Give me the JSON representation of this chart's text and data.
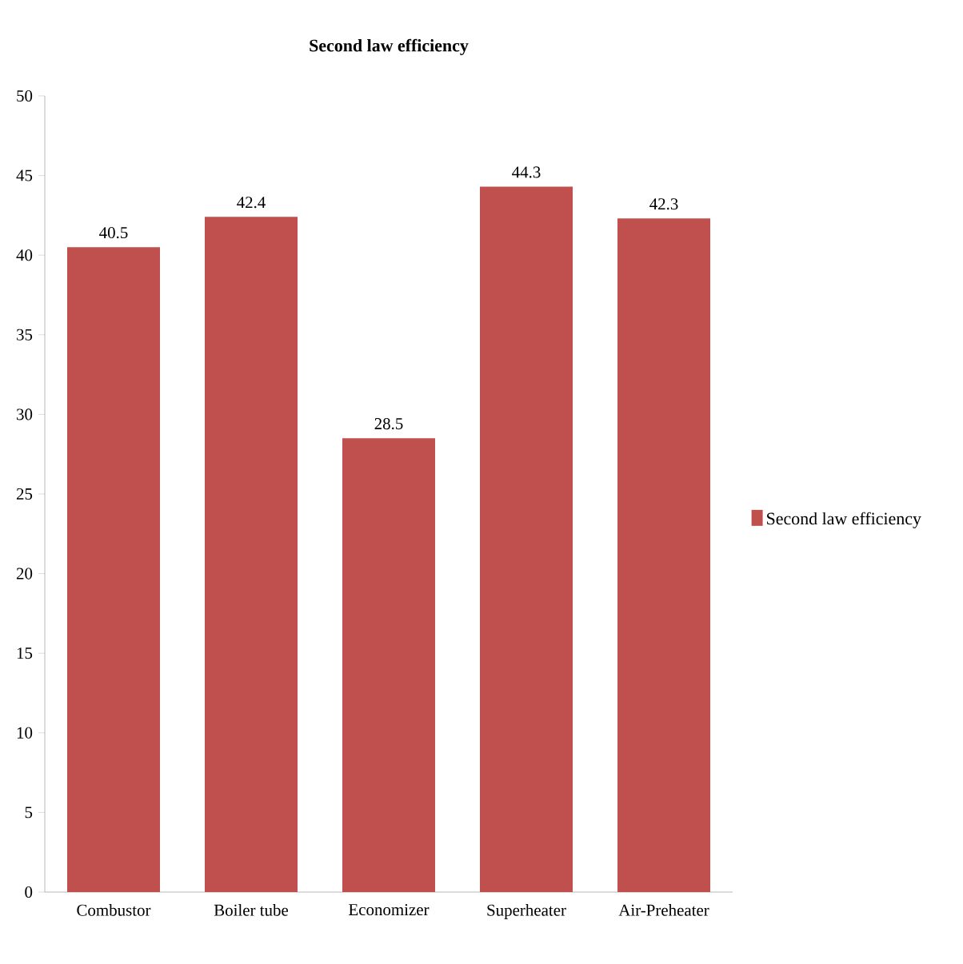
{
  "chart_data": {
    "type": "bar",
    "title": "Second law efficiency",
    "categories": [
      "Combustor",
      "Boiler tube",
      "Economizer",
      "Superheater",
      "Air-Preheater"
    ],
    "series": [
      {
        "name": "Second law efficiency",
        "color": "#c0504d",
        "values": [
          40.5,
          42.4,
          28.5,
          44.3,
          42.3
        ]
      }
    ],
    "ylim": [
      0,
      50
    ],
    "yticks": [
      0,
      5,
      10,
      15,
      20,
      25,
      30,
      35,
      40,
      45,
      50
    ],
    "data_labels": true,
    "legend": "right",
    "grid": false
  }
}
